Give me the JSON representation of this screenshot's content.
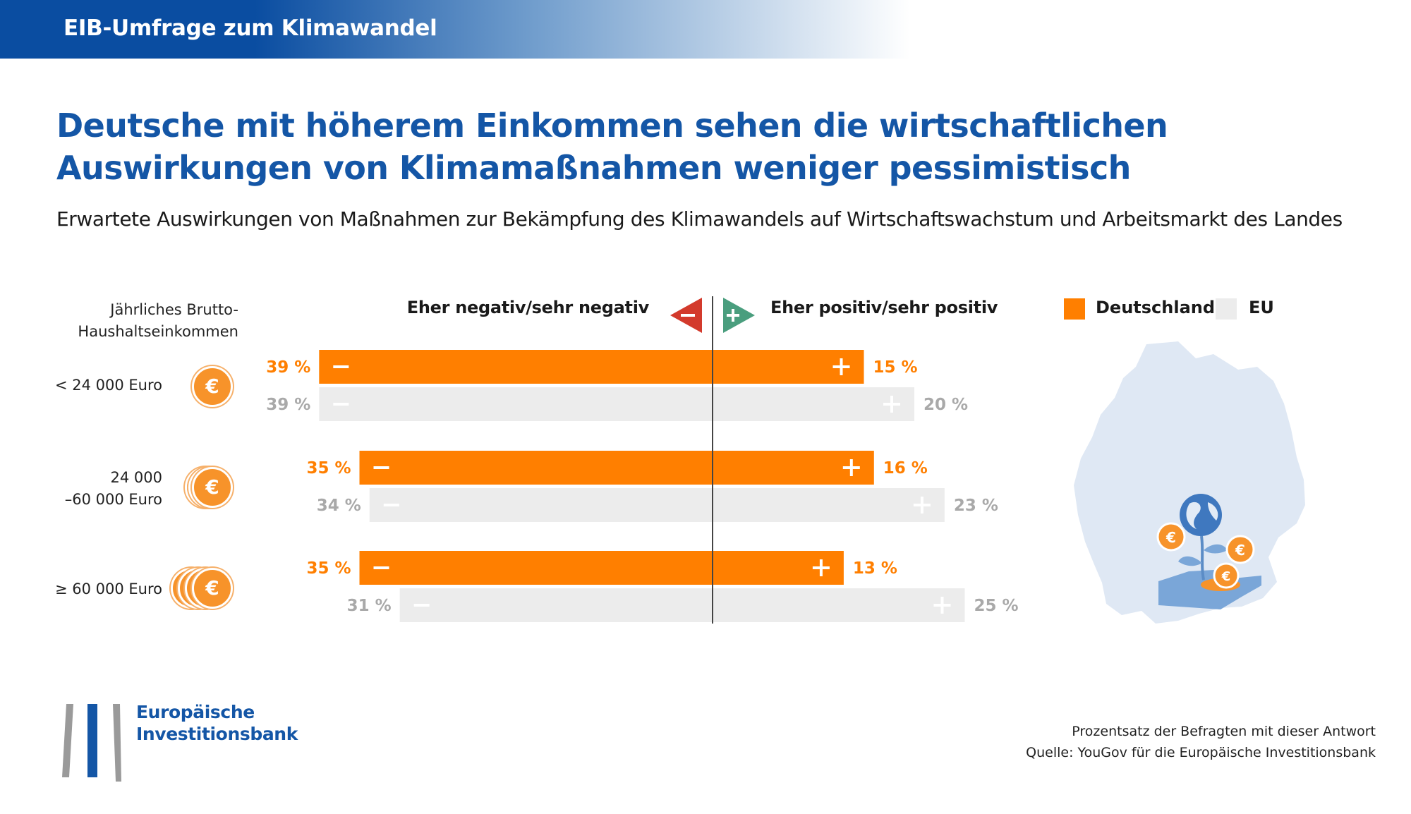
{
  "banner": {
    "title": "EIB-Umfrage zum Klimawandel"
  },
  "heading": {
    "title_line1": "Deutsche mit höherem Einkommen sehen die wirtschaftlichen",
    "title_line2": "Auswirkungen von Klimamaßnahmen weniger pessimistisch",
    "subtitle": "Erwartete Auswirkungen von Maßnahmen zur Bekämpfung des Klimawandels auf Wirtschaftswachstum und Arbeitsmarkt des Landes"
  },
  "axis": {
    "ylabel_line1": "Jährliches Brutto-",
    "ylabel_line2": "Haushaltseinkommen",
    "negative_header": "Eher negativ/sehr negativ",
    "positive_header": "Eher positiv/sehr positiv",
    "coin_symbol": "€"
  },
  "groups": [
    {
      "label_line1": "< 24 000 Euro",
      "label_line2": ""
    },
    {
      "label_line1": "24 000",
      "label_line2": "–60 000 Euro"
    },
    {
      "label_line1": "≥ 60 000 Euro",
      "label_line2": ""
    }
  ],
  "legend": {
    "de_label": "Deutschland",
    "eu_label": "EU"
  },
  "colors": {
    "de": "#ff7f00",
    "eu": "#ececec",
    "eu_text": "#a9a9a9",
    "negative_arrow": "#d33a2c",
    "positive_arrow": "#4a9e7e",
    "map": "#dfe8f4"
  },
  "chart_data": {
    "type": "bar",
    "orientation": "horizontal-diverging",
    "title": "Deutsche mit höherem Einkommen sehen die wirtschaftlichen Auswirkungen von Klimamaßnahmen weniger pessimistisch",
    "categories": [
      "< 24 000 Euro",
      "24 000 –60 000 Euro",
      "≥ 60 000 Euro"
    ],
    "series": [
      {
        "name": "Deutschland",
        "negative": [
          39,
          35,
          35
        ],
        "positive": [
          15,
          16,
          13
        ]
      },
      {
        "name": "EU",
        "negative": [
          39,
          34,
          31
        ],
        "positive": [
          20,
          23,
          25
        ]
      }
    ],
    "unit": "%",
    "negative_label": "Eher negativ/sehr negativ",
    "positive_label": "Eher positiv/sehr positiv",
    "legend_position": "top-right"
  },
  "footer": {
    "note": "Prozentsatz der Befragten mit dieser Antwort",
    "source": "Quelle: YouGov für die Europäische Investitionsbank",
    "logo_line1": "Europäische",
    "logo_line2": "Investitionsbank"
  }
}
